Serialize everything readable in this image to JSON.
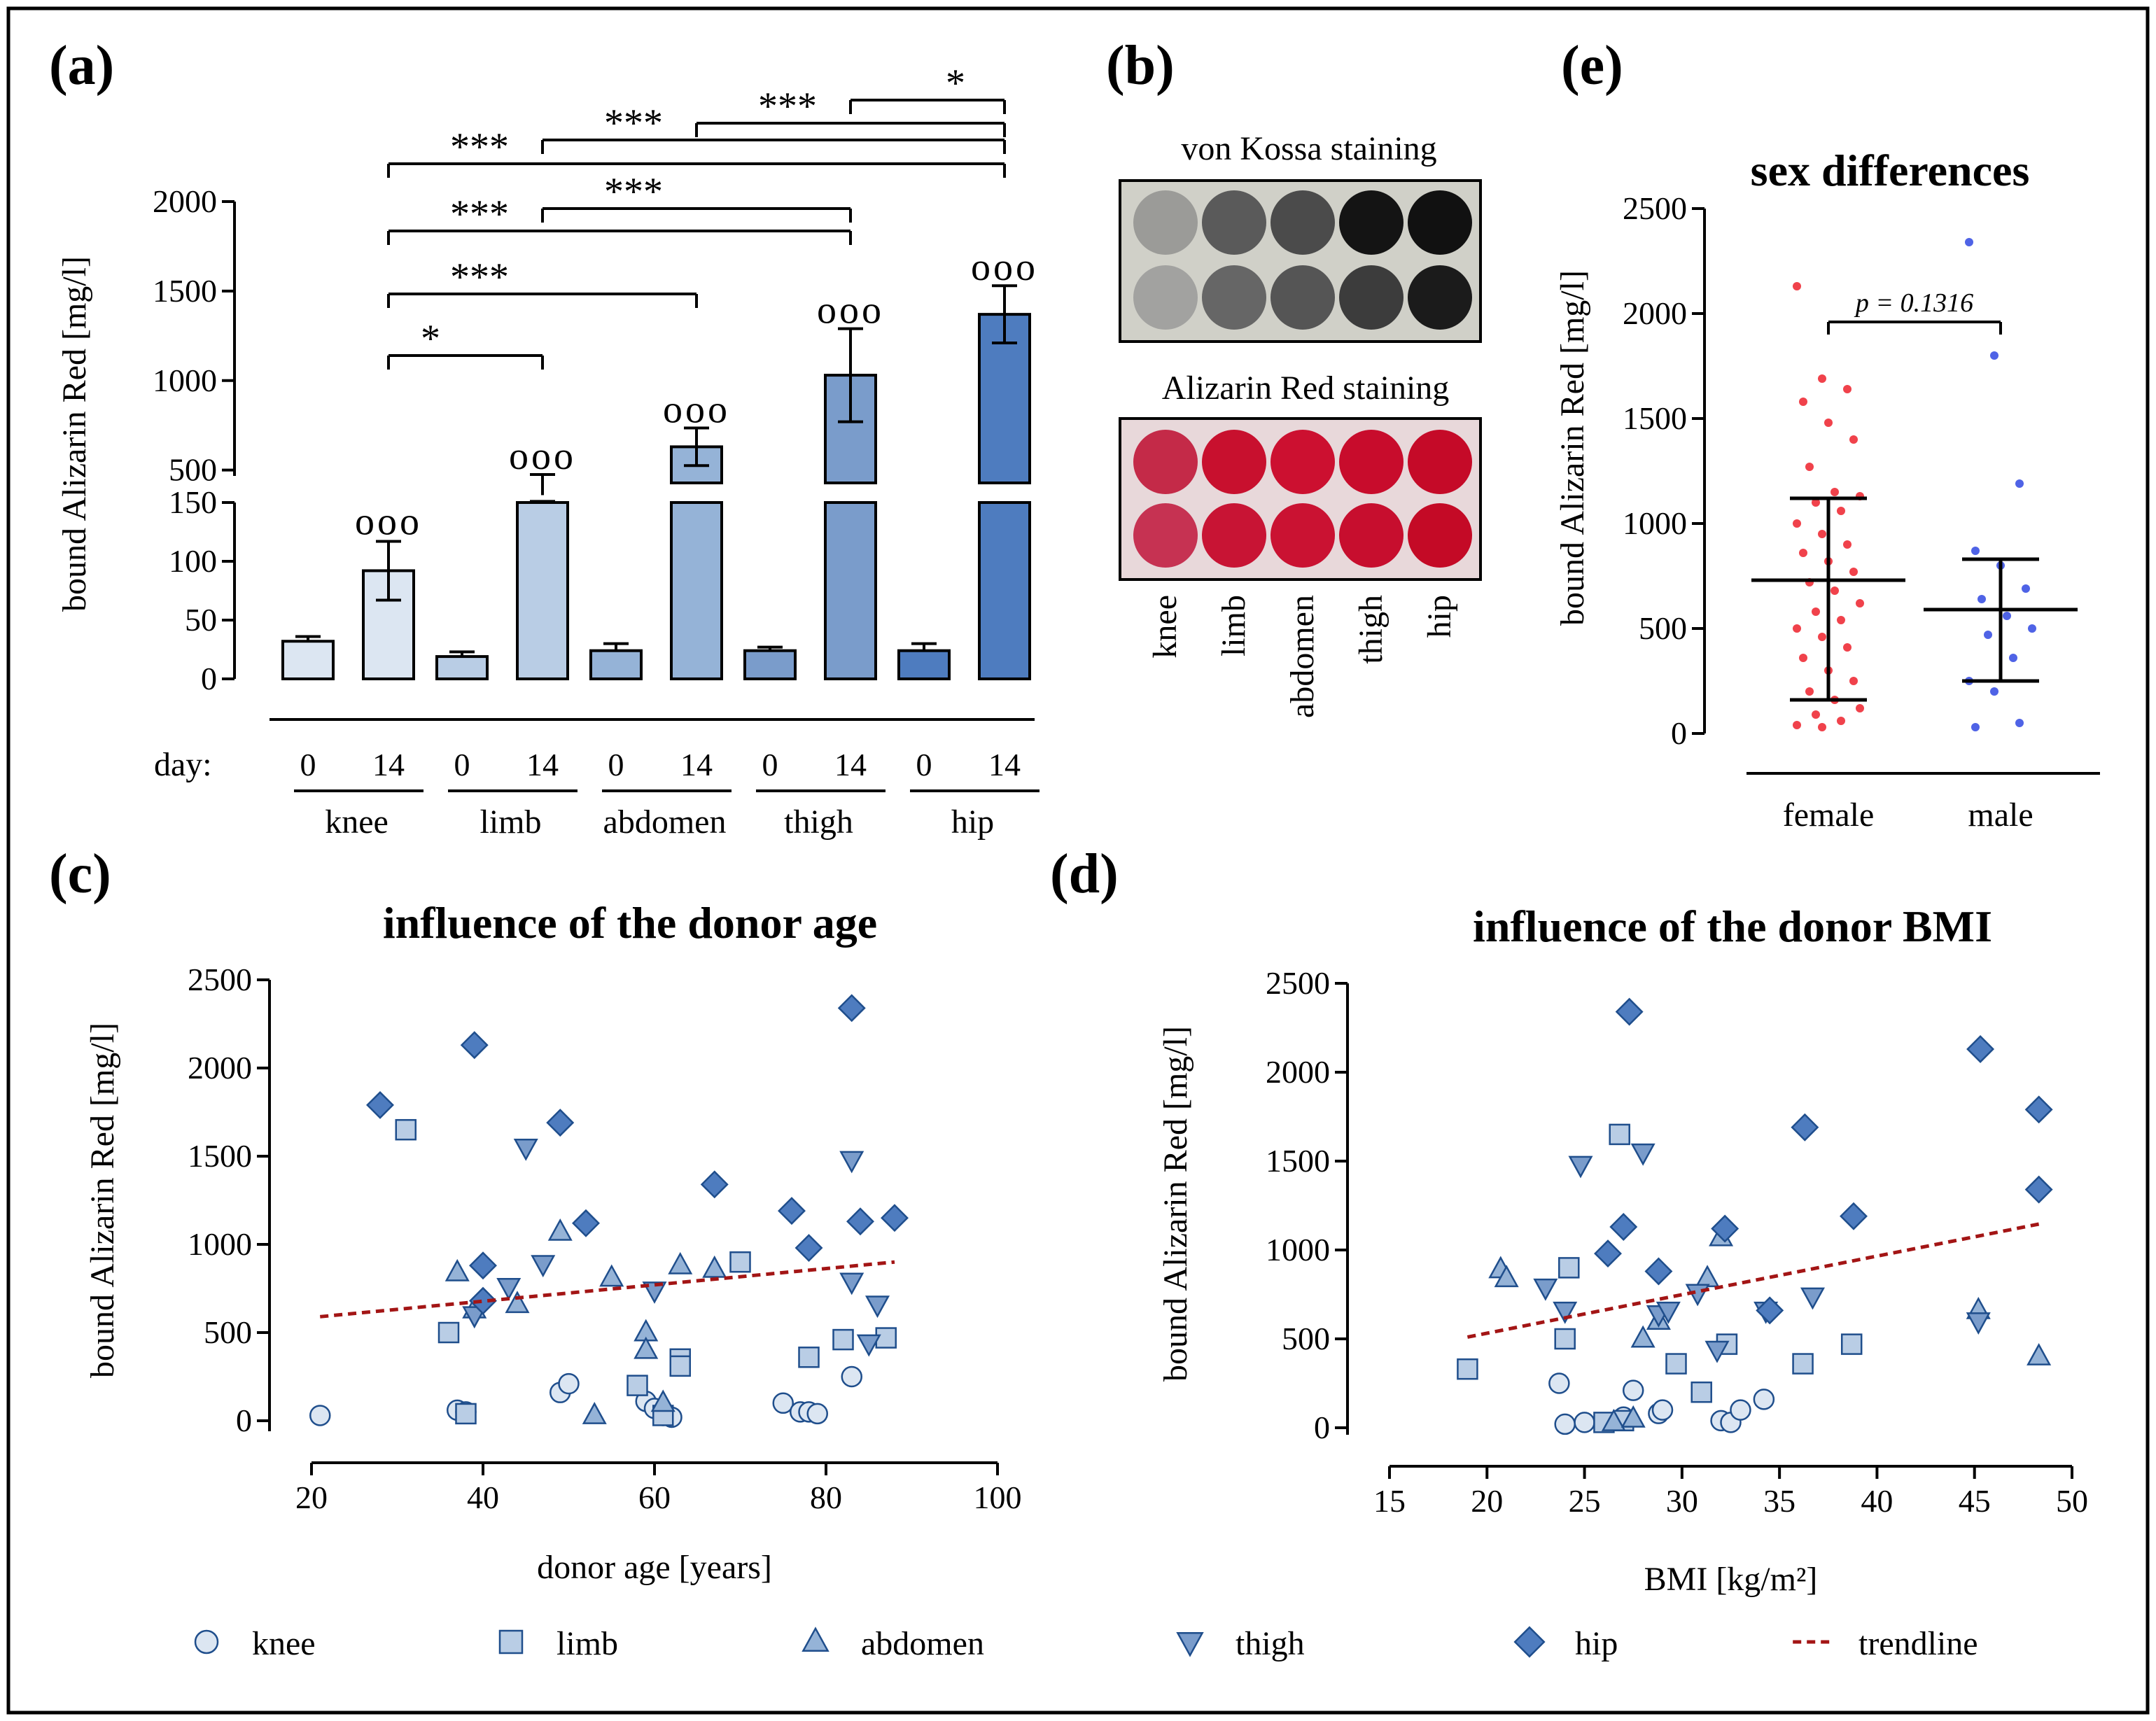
{
  "colors": {
    "knee": "#dce6f2",
    "limb": "#b9cde5",
    "abdomen": "#95b3d7",
    "thigh": "#7a9ccb",
    "hip": "#4e7cbf",
    "day0": "#4e7cbf",
    "marker_stroke": "#1f4e8c",
    "trend": "#a31515",
    "female": "#f0424b",
    "male": "#4f63e6",
    "border": "#000000"
  },
  "panels": {
    "a": {
      "label": "(a)",
      "day_label": "day:"
    },
    "b": {
      "label": "(b)",
      "vonkossa": "von Kossa staining",
      "alizarin": "Alizarin Red staining",
      "sites": [
        "knee",
        "limb",
        "abdomen",
        "thigh",
        "hip"
      ]
    },
    "c": {
      "label": "(c)"
    },
    "d": {
      "label": "(d)"
    },
    "e": {
      "label": "(e)"
    }
  },
  "chart_data": [
    {
      "id": "a",
      "type": "bar",
      "title": "",
      "ylabel": "bound Alizarin Red [mg/l]",
      "xlabel": "",
      "y_lower_range": [
        0,
        150
      ],
      "y_upper_range": [
        350,
        2000
      ],
      "y_lower_ticks": [
        0,
        50,
        100,
        150
      ],
      "y_upper_ticks": [
        500,
        1000,
        1500,
        2000
      ],
      "groups": [
        "knee",
        "limb",
        "abdomen",
        "thigh",
        "hip"
      ],
      "days": [
        "0",
        "14"
      ],
      "series": [
        {
          "name": "0",
          "values": [
            32,
            19,
            24,
            24,
            24
          ],
          "errors": [
            4,
            4,
            6,
            3,
            6
          ]
        },
        {
          "name": "14",
          "values": [
            92,
            400,
            630,
            1030,
            1370
          ],
          "errors": [
            25,
            75,
            105,
            260,
            160
          ]
        }
      ],
      "annotations": {
        "circles": [
          "ooo",
          "ooo",
          "ooo",
          "ooo",
          "ooo"
        ],
        "brackets": [
          {
            "from": "knee-14",
            "to": "limb-14",
            "label": "*"
          },
          {
            "from": "knee-14",
            "to": "abdomen-14",
            "label": "***"
          },
          {
            "from": "knee-14",
            "to": "thigh-14",
            "label": "***"
          },
          {
            "from": "limb-14",
            "to": "thigh-14",
            "label": "***"
          },
          {
            "from": "knee-14",
            "to": "hip-14",
            "label": "***"
          },
          {
            "from": "limb-14",
            "to": "hip-14",
            "label": "***"
          },
          {
            "from": "abdomen-14",
            "to": "hip-14",
            "label": "***"
          },
          {
            "from": "thigh-14",
            "to": "hip-14",
            "label": "*"
          }
        ]
      }
    },
    {
      "id": "e",
      "type": "scatter",
      "title": "sex differences",
      "ylabel": "bound Alizarin Red [mg/l]",
      "xlabel": "",
      "ylim": [
        0,
        2500
      ],
      "yticks": [
        0,
        500,
        1000,
        1500,
        2000,
        2500
      ],
      "categories": [
        "female",
        "male"
      ],
      "pvalue": "p = 0.1316",
      "series": [
        {
          "name": "female",
          "mean": 730,
          "sd_low": 160,
          "sd_high": 1120,
          "values": [
            2130,
            1690,
            1640,
            1580,
            1480,
            1400,
            1270,
            1150,
            1130,
            1100,
            1060,
            1000,
            950,
            900,
            860,
            820,
            770,
            720,
            680,
            620,
            580,
            540,
            500,
            460,
            410,
            360,
            300,
            250,
            200,
            160,
            120,
            90,
            60,
            40,
            30
          ]
        },
        {
          "name": "male",
          "mean": 590,
          "sd_low": 250,
          "sd_high": 830,
          "values": [
            2340,
            1800,
            1190,
            870,
            800,
            690,
            640,
            560,
            500,
            470,
            360,
            250,
            200,
            50,
            30
          ]
        }
      ]
    },
    {
      "id": "c",
      "type": "scatter",
      "title": "influence of the donor age",
      "xlabel": "donor age [years]",
      "ylabel": "bound Alizarin Red [mg/l]",
      "xlim": [
        20,
        100
      ],
      "ylim": [
        0,
        2500
      ],
      "xticks": [
        20,
        40,
        60,
        80,
        100
      ],
      "yticks": [
        0,
        500,
        1000,
        1500,
        2000,
        2500
      ],
      "trendline": {
        "x": [
          21,
          88
        ],
        "y": [
          590,
          900
        ]
      },
      "series": [
        {
          "name": "knee",
          "marker": "circle",
          "points": [
            [
              21,
              30
            ],
            [
              37,
              60
            ],
            [
              38,
              50
            ],
            [
              49,
              160
            ],
            [
              50,
              210
            ],
            [
              59,
              110
            ],
            [
              60,
              70
            ],
            [
              61,
              30
            ],
            [
              62,
              20
            ],
            [
              75,
              100
            ],
            [
              77,
              50
            ],
            [
              78,
              50
            ],
            [
              79,
              40
            ],
            [
              83,
              250
            ]
          ]
        },
        {
          "name": "limb",
          "marker": "square",
          "points": [
            [
              31,
              1650
            ],
            [
              36,
              500
            ],
            [
              38,
              40
            ],
            [
              58,
              200
            ],
            [
              61,
              30
            ],
            [
              63,
              350
            ],
            [
              63,
              310
            ],
            [
              70,
              900
            ],
            [
              78,
              360
            ],
            [
              82,
              460
            ],
            [
              87,
              470
            ]
          ]
        },
        {
          "name": "abdomen",
          "marker": "triangle-up",
          "points": [
            [
              37,
              840
            ],
            [
              39,
              630
            ],
            [
              44,
              660
            ],
            [
              49,
              1070
            ],
            [
              53,
              30
            ],
            [
              55,
              810
            ],
            [
              59,
              500
            ],
            [
              59,
              400
            ],
            [
              61,
              100
            ],
            [
              63,
              880
            ],
            [
              67,
              860
            ]
          ]
        },
        {
          "name": "thigh",
          "marker": "triangle-down",
          "points": [
            [
              39,
              600
            ],
            [
              43,
              760
            ],
            [
              45,
              1550
            ],
            [
              47,
              890
            ],
            [
              60,
              740
            ],
            [
              83,
              1480
            ],
            [
              83,
              790
            ],
            [
              85,
              440
            ],
            [
              86,
              660
            ]
          ]
        },
        {
          "name": "hip",
          "marker": "diamond",
          "points": [
            [
              28,
              1790
            ],
            [
              39,
              2130
            ],
            [
              40,
              880
            ],
            [
              40,
              680
            ],
            [
              49,
              1690
            ],
            [
              52,
              1120
            ],
            [
              67,
              1340
            ],
            [
              76,
              1190
            ],
            [
              78,
              980
            ],
            [
              83,
              2340
            ],
            [
              84,
              1130
            ],
            [
              88,
              1150
            ]
          ]
        }
      ]
    },
    {
      "id": "d",
      "type": "scatter",
      "title": "influence of the donor BMI",
      "xlabel": "BMI [kg/m²]",
      "ylabel": "bound Alizarin Red [mg/l]",
      "xlim": [
        15,
        50
      ],
      "ylim": [
        0,
        2500
      ],
      "xticks": [
        15,
        20,
        25,
        30,
        35,
        40,
        45,
        50
      ],
      "yticks": [
        0,
        500,
        1000,
        1500,
        2000,
        2500
      ],
      "trendline": {
        "x": [
          19,
          48.5
        ],
        "y": [
          510,
          1150
        ]
      },
      "series": [
        {
          "name": "knee",
          "marker": "circle",
          "points": [
            [
              23.7,
              250
            ],
            [
              24,
              20
            ],
            [
              25,
              30
            ],
            [
              27,
              60
            ],
            [
              27.5,
              210
            ],
            [
              28.8,
              80
            ],
            [
              29,
              100
            ],
            [
              32,
              40
            ],
            [
              32.5,
              30
            ],
            [
              33,
              100
            ],
            [
              34.2,
              160
            ]
          ]
        },
        {
          "name": "limb",
          "marker": "square",
          "points": [
            [
              19,
              330
            ],
            [
              24,
              500
            ],
            [
              24.2,
              900
            ],
            [
              26,
              30
            ],
            [
              26.8,
              1650
            ],
            [
              27,
              40
            ],
            [
              29.7,
              360
            ],
            [
              31,
              200
            ],
            [
              32.3,
              470
            ],
            [
              36.2,
              360
            ],
            [
              38.7,
              470
            ]
          ]
        },
        {
          "name": "abdomen",
          "marker": "triangle-up",
          "points": [
            [
              20.7,
              890
            ],
            [
              21,
              840
            ],
            [
              26.5,
              30
            ],
            [
              27.5,
              50
            ],
            [
              28,
              500
            ],
            [
              28.8,
              600
            ],
            [
              31.3,
              840
            ],
            [
              32,
              1070
            ],
            [
              45.2,
              660
            ],
            [
              48.3,
              400
            ]
          ]
        },
        {
          "name": "thigh",
          "marker": "triangle-down",
          "points": [
            [
              23,
              790
            ],
            [
              24,
              660
            ],
            [
              24.8,
              1480
            ],
            [
              28,
              1550
            ],
            [
              28.8,
              640
            ],
            [
              29.3,
              660
            ],
            [
              30.8,
              760
            ],
            [
              31.8,
              440
            ],
            [
              34.3,
              660
            ],
            [
              36.7,
              740
            ],
            [
              45.2,
              600
            ]
          ]
        },
        {
          "name": "hip",
          "marker": "diamond",
          "points": [
            [
              26.2,
              980
            ],
            [
              27,
              1130
            ],
            [
              27.3,
              2340
            ],
            [
              28.8,
              880
            ],
            [
              32.2,
              1120
            ],
            [
              34.5,
              660
            ],
            [
              36.3,
              1690
            ],
            [
              38.8,
              1190
            ],
            [
              45.3,
              2130
            ],
            [
              48.3,
              1790
            ],
            [
              48.3,
              1340
            ]
          ]
        }
      ]
    }
  ],
  "legend": {
    "items": [
      {
        "name": "knee",
        "marker": "circle"
      },
      {
        "name": "limb",
        "marker": "square"
      },
      {
        "name": "abdomen",
        "marker": "triangle-up"
      },
      {
        "name": "thigh",
        "marker": "triangle-down"
      },
      {
        "name": "hip",
        "marker": "diamond"
      },
      {
        "name": "trendline",
        "marker": "dash"
      }
    ]
  }
}
